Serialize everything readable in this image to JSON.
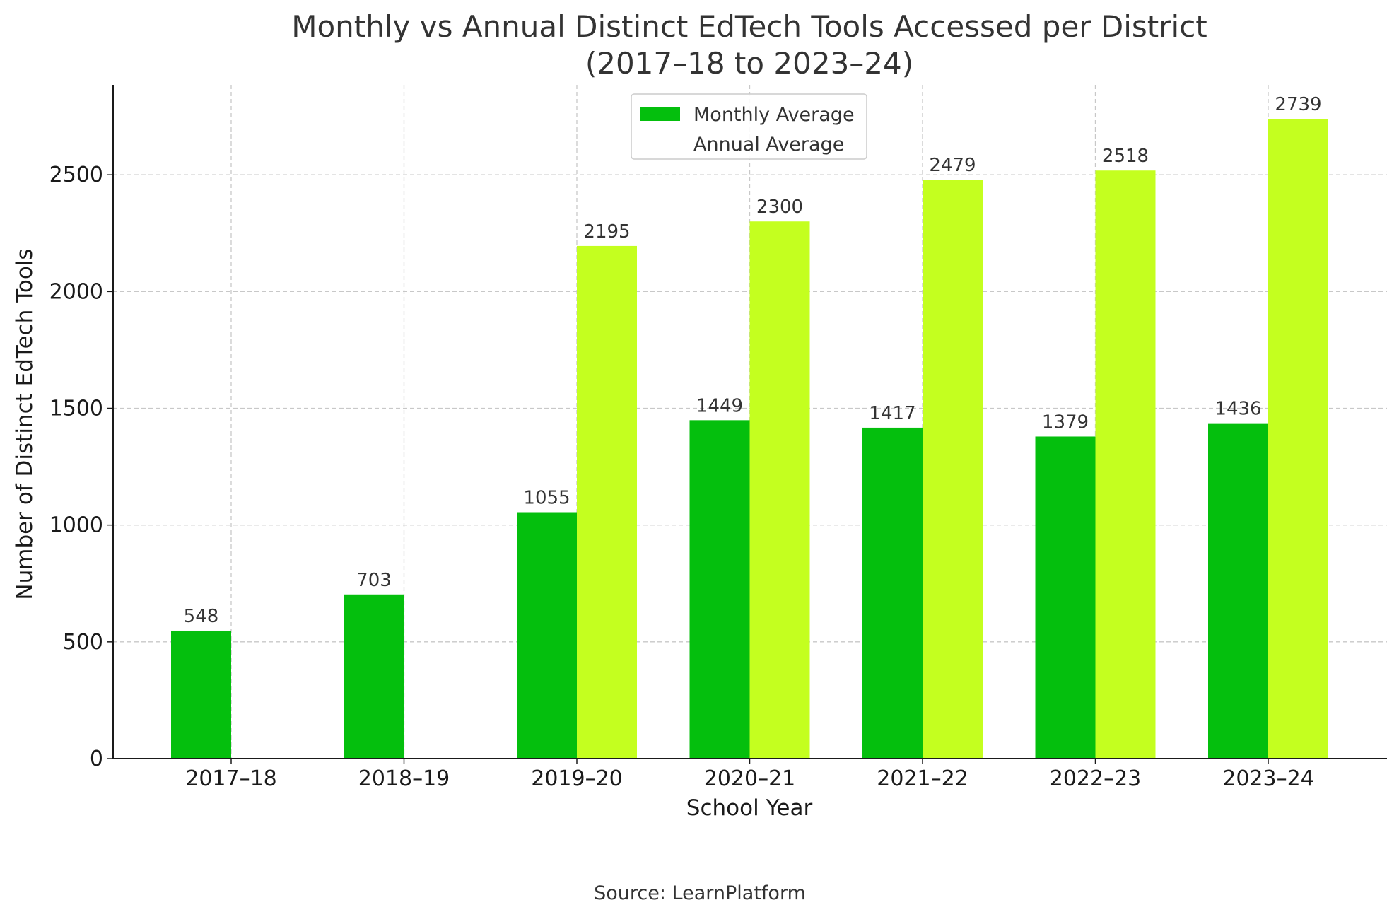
{
  "chart_data": {
    "type": "bar",
    "title": "Monthly vs Annual Distinct EdTech Tools Accessed per District",
    "subtitle": "(2017–18 to 2023–24)",
    "xlabel": "School Year",
    "ylabel": "Number of Distinct EdTech Tools",
    "source": "Source: LearnPlatform",
    "categories": [
      "2017–18",
      "2018–19",
      "2019–20",
      "2020–21",
      "2021–22",
      "2022–23",
      "2023–24"
    ],
    "series": [
      {
        "name": "Monthly Average",
        "color": "#04bf0d",
        "values": [
          548,
          703,
          1055,
          1449,
          1417,
          1379,
          1436
        ]
      },
      {
        "name": "Annual Average",
        "color": "#c4ff1f",
        "values": [
          null,
          null,
          2195,
          2300,
          2479,
          2518,
          2739
        ]
      }
    ],
    "ylim": [
      0,
      2885
    ],
    "yticks": [
      0,
      500,
      1000,
      1500,
      2000,
      2500
    ],
    "grid": true,
    "legend_position": "top-center"
  }
}
